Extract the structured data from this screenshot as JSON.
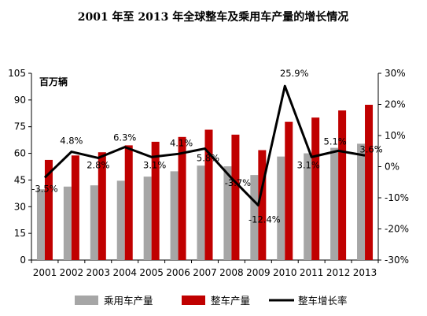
{
  "chart_data": {
    "type": "bar",
    "title": "2001 年至 2013 年全球整车及乘用车产量的增长情况",
    "unit_label": "百万辆",
    "categories": [
      "2001",
      "2002",
      "2003",
      "2004",
      "2005",
      "2006",
      "2007",
      "2008",
      "2009",
      "2010",
      "2011",
      "2012",
      "2013"
    ],
    "series": [
      {
        "name": "乘用车产量",
        "kind": "bar",
        "axis": "left",
        "color": "#a6a6a6",
        "values": [
          39.8,
          41.3,
          42.0,
          44.6,
          46.9,
          49.9,
          53.1,
          52.7,
          47.8,
          58.2,
          60.0,
          63.1,
          65.4
        ]
      },
      {
        "name": "整车产量",
        "kind": "bar",
        "axis": "left",
        "color": "#c00000",
        "values": [
          56.3,
          58.8,
          60.6,
          64.5,
          66.5,
          69.2,
          73.3,
          70.5,
          61.8,
          77.7,
          80.1,
          84.1,
          87.3
        ]
      },
      {
        "name": "整车增长率",
        "kind": "line",
        "axis": "right",
        "color": "#000000",
        "values": [
          -3.5,
          4.8,
          2.8,
          6.3,
          3.1,
          4.1,
          5.8,
          -3.7,
          -12.4,
          25.9,
          3.1,
          5.1,
          3.6
        ],
        "labels": [
          "-3.5%",
          "4.8%",
          "2.8%",
          "6.3%",
          "3.1%",
          "4.1%",
          "5.8%",
          "-3.7%",
          "-12.4%",
          "25.9%",
          "3.1%",
          "5.1%",
          "3.6%"
        ]
      }
    ],
    "y_left": {
      "min": 0,
      "max": 105,
      "ticks": [
        "0",
        "15",
        "30",
        "45",
        "60",
        "75",
        "90",
        "105"
      ]
    },
    "y_right": {
      "min": -30,
      "max": 30,
      "ticks": [
        "-30%",
        "-20%",
        "-10%",
        "0%",
        "10%",
        "20%",
        "30%"
      ]
    },
    "grid": false,
    "legend_position": "bottom"
  }
}
